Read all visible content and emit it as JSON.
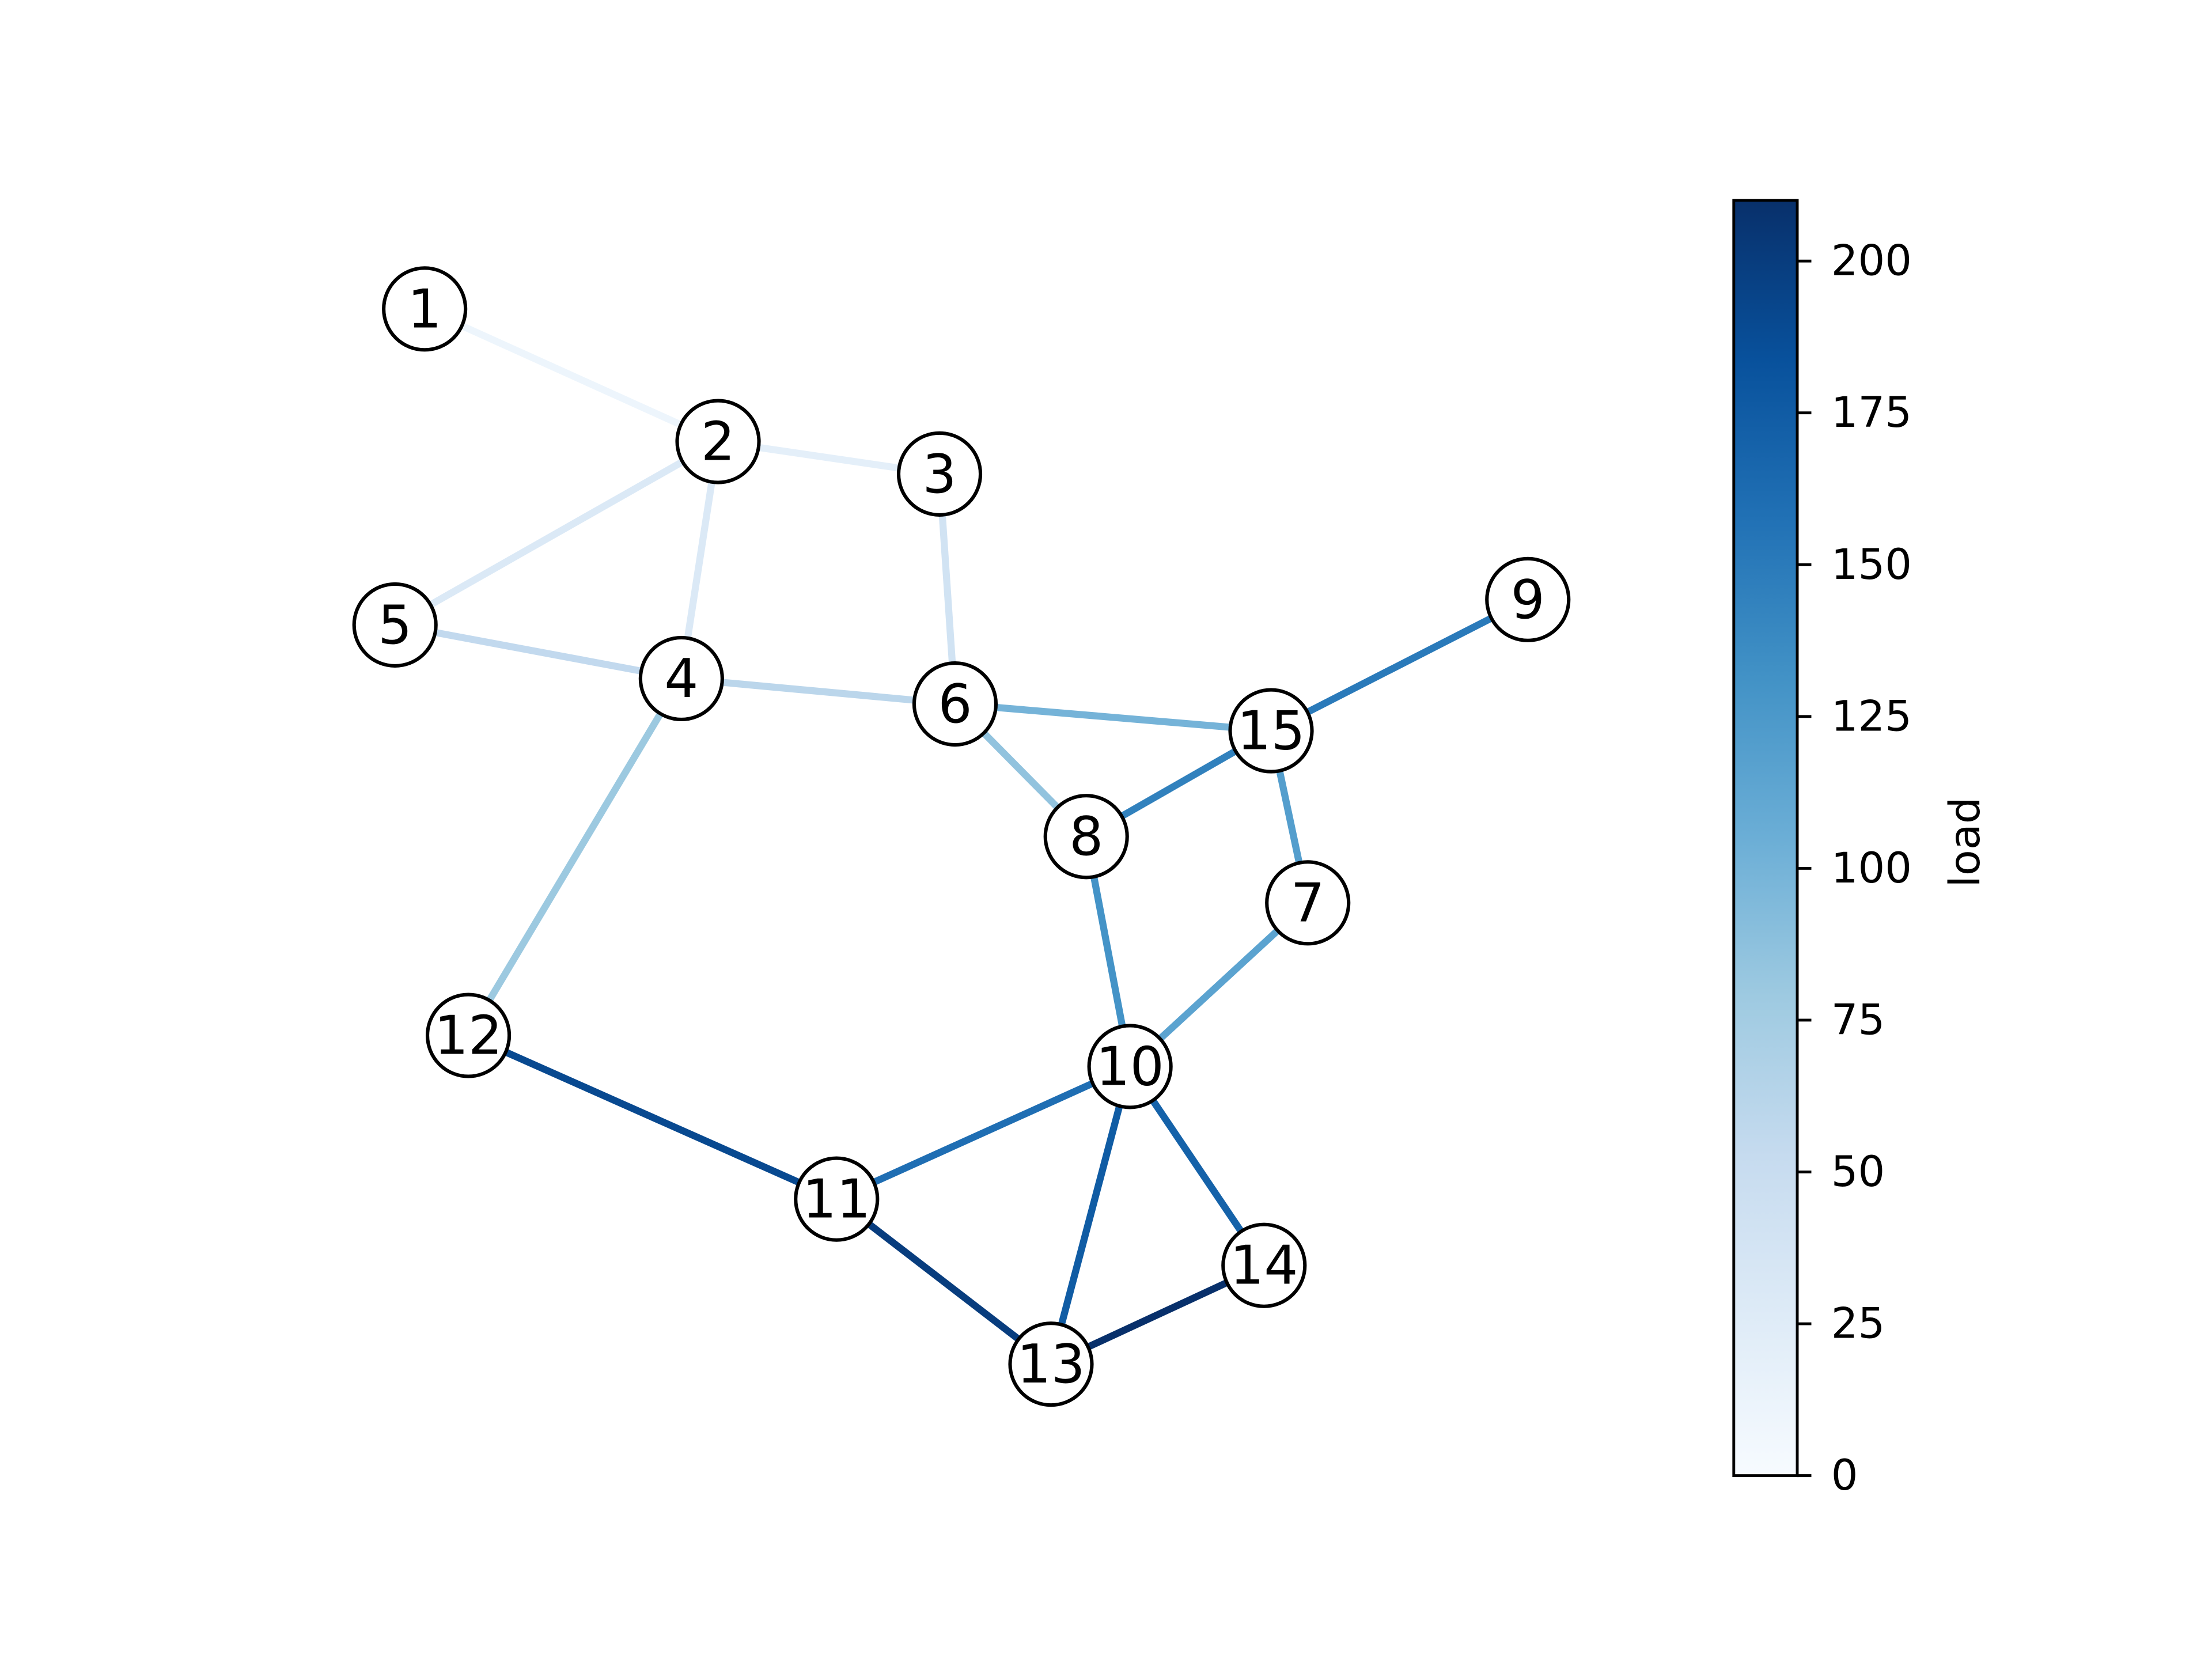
{
  "chart_data": {
    "type": "network",
    "nodes": [
      "1",
      "2",
      "3",
      "4",
      "5",
      "6",
      "7",
      "8",
      "9",
      "10",
      "11",
      "12",
      "13",
      "14",
      "15"
    ],
    "edges": [
      {
        "source": "1",
        "target": "2",
        "load": 10
      },
      {
        "source": "2",
        "target": "3",
        "load": 20
      },
      {
        "source": "2",
        "target": "5",
        "load": 30
      },
      {
        "source": "2",
        "target": "4",
        "load": 30
      },
      {
        "source": "3",
        "target": "6",
        "load": 40
      },
      {
        "source": "5",
        "target": "4",
        "load": 55
      },
      {
        "source": "4",
        "target": "6",
        "load": 60
      },
      {
        "source": "4",
        "target": "12",
        "load": 80
      },
      {
        "source": "6",
        "target": "8",
        "load": 85
      },
      {
        "source": "6",
        "target": "15",
        "load": 100
      },
      {
        "source": "15",
        "target": "9",
        "load": 150
      },
      {
        "source": "15",
        "target": "8",
        "load": 145
      },
      {
        "source": "15",
        "target": "7",
        "load": 120
      },
      {
        "source": "8",
        "target": "10",
        "load": 130
      },
      {
        "source": "7",
        "target": "10",
        "load": 115
      },
      {
        "source": "10",
        "target": "11",
        "load": 160
      },
      {
        "source": "12",
        "target": "11",
        "load": 190
      },
      {
        "source": "11",
        "target": "13",
        "load": 200
      },
      {
        "source": "10",
        "target": "13",
        "load": 175
      },
      {
        "source": "10",
        "target": "14",
        "load": 170
      },
      {
        "source": "13",
        "target": "14",
        "load": 210
      }
    ],
    "colormap": "Blues",
    "colorbar": {
      "label": "load",
      "lim": [
        0,
        210
      ],
      "ticks": [
        0,
        25,
        50,
        75,
        100,
        125,
        150,
        175,
        200
      ]
    }
  }
}
